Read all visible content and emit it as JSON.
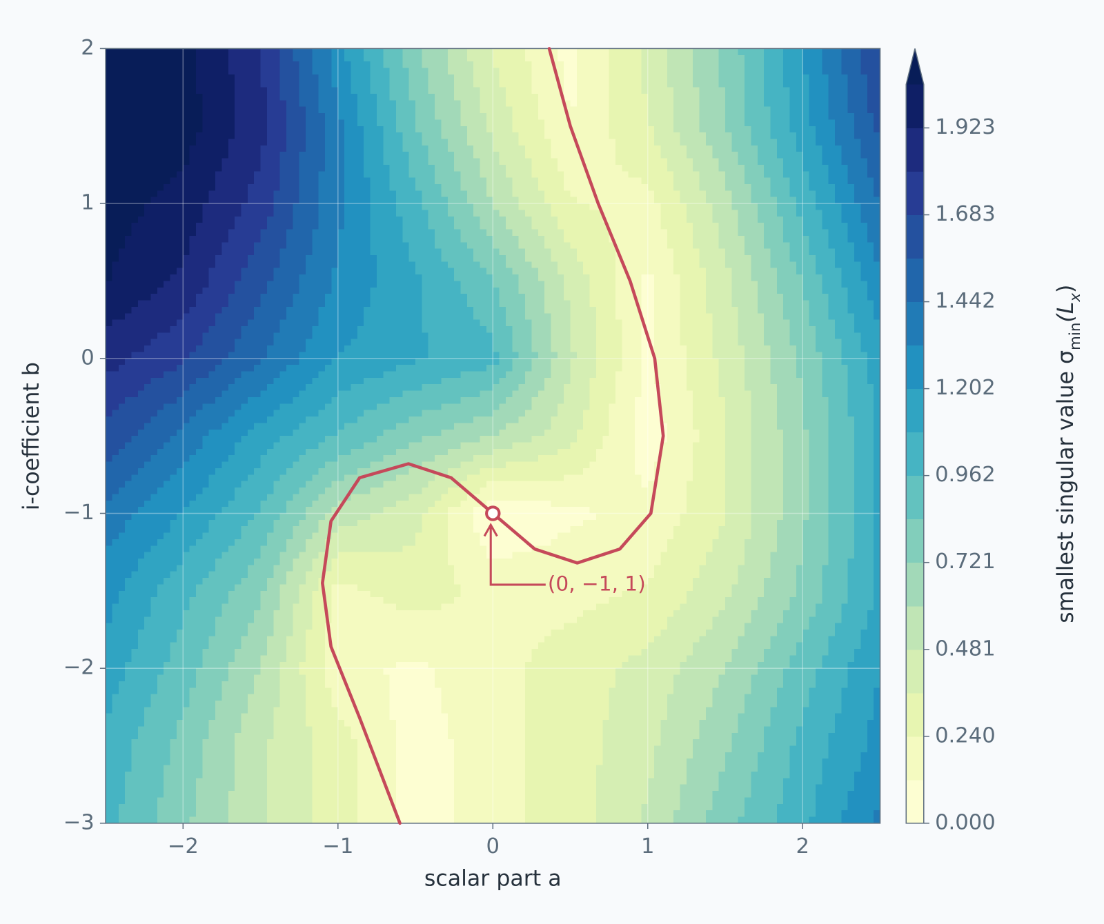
{
  "chart_data": {
    "type": "contour",
    "xlabel": "scalar part  a",
    "ylabel": "i-coefficient  b",
    "x": [
      -2.5,
      -2,
      -1.5,
      -1,
      -0.5,
      0,
      0.5,
      1,
      1.5,
      2,
      2.5
    ],
    "y": [
      2,
      1.5,
      1,
      0.5,
      0,
      -0.5,
      -1,
      -1.5,
      -2,
      -2.5,
      -3
    ],
    "z": [
      [
        2.1,
        2.1,
        1.8,
        1.25,
        0.75,
        0.35,
        0.08,
        0.4,
        0.75,
        1.2,
        1.7
      ],
      [
        2.1,
        2.1,
        1.85,
        1.35,
        0.85,
        0.45,
        0.12,
        0.35,
        0.72,
        1.15,
        1.6
      ],
      [
        2.1,
        2.0,
        1.75,
        1.35,
        1.0,
        0.6,
        0.25,
        0.2,
        0.55,
        1.0,
        1.45
      ],
      [
        2.05,
        1.9,
        1.6,
        1.3,
        1.1,
        0.85,
        0.45,
        0.1,
        0.45,
        0.85,
        1.3
      ],
      [
        1.85,
        1.7,
        1.45,
        1.2,
        1.1,
        1.0,
        0.5,
        0.1,
        0.4,
        0.75,
        1.15
      ],
      [
        1.65,
        1.4,
        1.15,
        0.95,
        0.75,
        0.6,
        0.4,
        0.05,
        0.35,
        0.7,
        1.1
      ],
      [
        1.4,
        1.2,
        0.95,
        0.55,
        0.4,
        0.0,
        0.1,
        0.15,
        0.35,
        0.7,
        1.1
      ],
      [
        1.25,
        1.0,
        0.75,
        0.2,
        0.3,
        0.2,
        0.2,
        0.25,
        0.45,
        0.75,
        1.1
      ],
      [
        1.15,
        0.9,
        0.6,
        0.15,
        0.1,
        0.2,
        0.3,
        0.4,
        0.6,
        0.9,
        1.2
      ],
      [
        1.05,
        0.8,
        0.5,
        0.3,
        0.05,
        0.2,
        0.3,
        0.45,
        0.7,
        1.0,
        1.25
      ],
      [
        1.0,
        0.75,
        0.5,
        0.3,
        0.05,
        0.2,
        0.3,
        0.5,
        0.8,
        1.05,
        1.35
      ]
    ],
    "xlim": [
      -2.5,
      2.5
    ],
    "ylim": [
      -3,
      2
    ],
    "xticks": [
      {
        "value": -2,
        "label": "−2"
      },
      {
        "value": -1,
        "label": "−1"
      },
      0,
      1,
      2
    ],
    "yticks": [
      {
        "value": -3,
        "label": "−3"
      },
      {
        "value": -2,
        "label": "−2"
      },
      {
        "value": -1,
        "label": "−1"
      },
      0,
      1,
      2
    ],
    "grid": true,
    "levels": [
      0,
      0.1202,
      0.2404,
      0.3606,
      0.4808,
      0.601,
      0.7212,
      0.8414,
      0.9616,
      1.0818,
      1.202,
      1.3222,
      1.4424,
      1.5626,
      1.6828,
      1.803,
      1.9232,
      2.0434
    ],
    "colors": [
      "#fdfed2",
      "#f4fac0",
      "#e7f5b1",
      "#d5eeb3",
      "#c0e5b5",
      "#a2d9b8",
      "#82cebb",
      "#63c2bf",
      "#46b4c3",
      "#30a4c2",
      "#2291c0",
      "#217bb6",
      "#2166ab",
      "#24519f",
      "#273c94",
      "#1d2b7e",
      "#0f1f66"
    ],
    "over_color": "#081d58",
    "colorbar_ticks": [
      {
        "value": 0,
        "label": "0.000"
      },
      {
        "value": 0.2404,
        "label": "0.240"
      },
      {
        "value": 0.4808,
        "label": "0.481"
      },
      {
        "value": 0.7212,
        "label": "0.721"
      },
      {
        "value": 0.9616,
        "label": "0.962"
      },
      {
        "value": 1.202,
        "label": "1.202"
      },
      {
        "value": 1.4424,
        "label": "1.442"
      },
      {
        "value": 1.6828,
        "label": "1.683"
      },
      {
        "value": 1.9232,
        "label": "1.923"
      }
    ],
    "colorbar_label": [
      "smallest singular value  σ",
      "min",
      "(L",
      "x",
      ")"
    ],
    "curve": {
      "color": "#c5495a",
      "x": [
        0.364,
        0.5,
        0.68,
        0.886,
        1.045,
        1.1,
        1.02,
        0.82,
        0.545,
        0.27,
        0,
        -0.27,
        -0.545,
        -0.86,
        -1.045,
        -1.1,
        -1.045,
        -0.86,
        -0.6
      ],
      "y": [
        2,
        1.5,
        1,
        0.5,
        0,
        -0.5,
        -1,
        -1.23,
        -1.32,
        -1.23,
        -1,
        -0.77,
        -0.68,
        -0.77,
        -1.05,
        -1.45,
        -1.86,
        -2.32,
        -3
      ]
    },
    "point": {
      "x": 0,
      "y": -1,
      "label": "(0, −1, 1)"
    }
  }
}
